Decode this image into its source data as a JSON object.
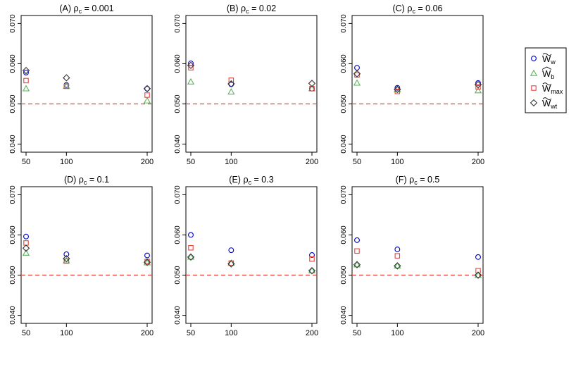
{
  "colors": {
    "W_w": "#0000cc",
    "W_b": "#5ab55a",
    "W_max": "#e8413c",
    "W_wt": "#333333",
    "reference_line": "#e8413c"
  },
  "legend": {
    "position": "right",
    "entries": [
      {
        "key": "W_w",
        "marker": "circle",
        "base": "W",
        "accent": "tilde",
        "sub": "w"
      },
      {
        "key": "W_b",
        "marker": "triangle",
        "base": "W",
        "accent": "hat",
        "sub": "b"
      },
      {
        "key": "W_max",
        "marker": "square",
        "base": "W",
        "accent": "tilde",
        "sub": "max"
      },
      {
        "key": "W_wt",
        "marker": "diamond",
        "base": "W",
        "accent": "tilde",
        "sub": "wt"
      }
    ]
  },
  "chart_data": [
    {
      "type": "scatter",
      "title_prefix": "(A) ",
      "rho_symbol": "ρ",
      "rho_sub": "c",
      "rho_value": " = 0.001",
      "x": [
        50,
        100,
        200
      ],
      "x_ticks": [
        "50",
        "100",
        "200"
      ],
      "ylim": [
        0.038,
        0.072
      ],
      "y_ticks": [
        "0.040",
        "0.050",
        "0.060",
        "0.070"
      ],
      "y_tick_values": [
        0.04,
        0.05,
        0.06,
        0.07
      ],
      "reference_line": 0.05,
      "series": [
        {
          "key": "W_w",
          "values": [
            0.0578,
            0.0547,
            0.0538
          ]
        },
        {
          "key": "W_b",
          "values": [
            0.0538,
            0.0544,
            0.0508
          ]
        },
        {
          "key": "W_max",
          "values": [
            0.0558,
            0.0544,
            0.0522
          ]
        },
        {
          "key": "W_wt",
          "values": [
            0.0583,
            0.0565,
            0.0538
          ]
        }
      ]
    },
    {
      "type": "scatter",
      "title_prefix": "(B) ",
      "rho_symbol": "ρ",
      "rho_sub": "c",
      "rho_value": " = 0.02",
      "x": [
        50,
        100,
        200
      ],
      "x_ticks": [
        "50",
        "100",
        "200"
      ],
      "ylim": [
        0.038,
        0.072
      ],
      "y_ticks": [
        "0.040",
        "0.050",
        "0.060",
        "0.070"
      ],
      "y_tick_values": [
        0.04,
        0.05,
        0.06,
        0.07
      ],
      "reference_line": 0.05,
      "series": [
        {
          "key": "W_w",
          "values": [
            0.0601,
            0.0549,
            0.0538
          ]
        },
        {
          "key": "W_b",
          "values": [
            0.0555,
            0.053,
            0.0538
          ]
        },
        {
          "key": "W_max",
          "values": [
            0.059,
            0.0559,
            0.0538
          ]
        },
        {
          "key": "W_wt",
          "values": [
            0.0596,
            0.055,
            0.0551
          ]
        }
      ]
    },
    {
      "type": "scatter",
      "title_prefix": "(C) ",
      "rho_symbol": "ρ",
      "rho_sub": "c",
      "rho_value": " = 0.06",
      "x": [
        50,
        100,
        200
      ],
      "x_ticks": [
        "50",
        "100",
        "200"
      ],
      "ylim": [
        0.038,
        0.072
      ],
      "y_ticks": [
        "0.040",
        "0.050",
        "0.060",
        "0.070"
      ],
      "y_tick_values": [
        0.04,
        0.05,
        0.06,
        0.07
      ],
      "reference_line": 0.05,
      "series": [
        {
          "key": "W_w",
          "values": [
            0.059,
            0.054,
            0.0552
          ]
        },
        {
          "key": "W_b",
          "values": [
            0.0552,
            0.0536,
            0.0533
          ]
        },
        {
          "key": "W_max",
          "values": [
            0.0572,
            0.0531,
            0.0542
          ]
        },
        {
          "key": "W_wt",
          "values": [
            0.0575,
            0.0536,
            0.0548
          ]
        }
      ]
    },
    {
      "type": "scatter",
      "title_prefix": "(D) ",
      "rho_symbol": "ρ",
      "rho_sub": "c",
      "rho_value": " = 0.1",
      "x": [
        50,
        100,
        200
      ],
      "x_ticks": [
        "50",
        "100",
        "200"
      ],
      "ylim": [
        0.038,
        0.072
      ],
      "y_ticks": [
        "0.040",
        "0.050",
        "0.060",
        "0.070"
      ],
      "y_tick_values": [
        0.04,
        0.05,
        0.06,
        0.07
      ],
      "reference_line": 0.05,
      "series": [
        {
          "key": "W_w",
          "values": [
            0.0596,
            0.0552,
            0.0549
          ]
        },
        {
          "key": "W_b",
          "values": [
            0.0555,
            0.0536,
            0.0531
          ]
        },
        {
          "key": "W_max",
          "values": [
            0.058,
            0.0535,
            0.0534
          ]
        },
        {
          "key": "W_wt",
          "values": [
            0.0567,
            0.0541,
            0.0532
          ]
        }
      ]
    },
    {
      "type": "scatter",
      "title_prefix": "(E) ",
      "rho_symbol": "ρ",
      "rho_sub": "c",
      "rho_value": " = 0.3",
      "x": [
        50,
        100,
        200
      ],
      "x_ticks": [
        "50",
        "100",
        "200"
      ],
      "ylim": [
        0.038,
        0.072
      ],
      "y_ticks": [
        "0.040",
        "0.050",
        "0.060",
        "0.070"
      ],
      "y_tick_values": [
        0.04,
        0.05,
        0.06,
        0.07
      ],
      "reference_line": 0.05,
      "series": [
        {
          "key": "W_w",
          "values": [
            0.06,
            0.0562,
            0.055
          ]
        },
        {
          "key": "W_b",
          "values": [
            0.0545,
            0.053,
            0.0511
          ]
        },
        {
          "key": "W_max",
          "values": [
            0.0568,
            0.053,
            0.054
          ]
        },
        {
          "key": "W_wt",
          "values": [
            0.0545,
            0.0528,
            0.0511
          ]
        }
      ]
    },
    {
      "type": "scatter",
      "title_prefix": "(F) ",
      "rho_symbol": "ρ",
      "rho_sub": "c",
      "rho_value": " = 0.5",
      "x": [
        50,
        100,
        200
      ],
      "x_ticks": [
        "50",
        "100",
        "200"
      ],
      "ylim": [
        0.038,
        0.072
      ],
      "y_ticks": [
        "0.040",
        "0.050",
        "0.060",
        "0.070"
      ],
      "y_tick_values": [
        0.04,
        0.05,
        0.06,
        0.07
      ],
      "reference_line": 0.05,
      "series": [
        {
          "key": "W_w",
          "values": [
            0.0587,
            0.0564,
            0.0545
          ]
        },
        {
          "key": "W_b",
          "values": [
            0.0526,
            0.0523,
            0.05
          ]
        },
        {
          "key": "W_max",
          "values": [
            0.056,
            0.0548,
            0.0511
          ]
        },
        {
          "key": "W_wt",
          "values": [
            0.0526,
            0.0523,
            0.05
          ]
        }
      ]
    }
  ]
}
